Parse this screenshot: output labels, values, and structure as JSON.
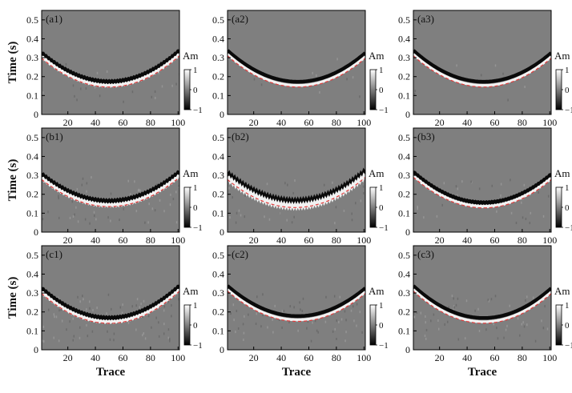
{
  "chart_data": {
    "type": "heatmap",
    "description_free": true,
    "shared": {
      "xlabel": "Trace",
      "ylabel": "Time (s)",
      "xlim": [
        1,
        101
      ],
      "ylim": [
        0,
        0.55
      ],
      "xticks": [
        20,
        40,
        60,
        80,
        100
      ],
      "yticks": [
        0,
        0.1,
        0.2,
        0.3,
        0.4,
        0.5
      ],
      "colorbar": {
        "label": "Am",
        "ticks": [
          1,
          0,
          -1
        ],
        "range": [
          -1,
          1
        ]
      },
      "background_color": "#7f7f7f",
      "event_color": "#0a0a0a",
      "reference_color": "#e23b3b"
    },
    "panels": [
      {
        "label": "(a1)",
        "apex_trace": 50,
        "apex_time": 0.165,
        "edge_time": 0.33,
        "noise": 0.1,
        "jitter": 0.003
      },
      {
        "label": "(a2)",
        "apex_trace": 52,
        "apex_time": 0.165,
        "edge_time": 0.33,
        "noise": 0.05,
        "jitter": 0.0
      },
      {
        "label": "(a3)",
        "apex_trace": 52,
        "apex_time": 0.165,
        "edge_time": 0.33,
        "noise": 0.04,
        "jitter": 0.0
      },
      {
        "label": "(b1)",
        "apex_trace": 50,
        "apex_time": 0.155,
        "edge_time": 0.31,
        "noise": 0.25,
        "jitter": 0.004
      },
      {
        "label": "(b2)",
        "apex_trace": 50,
        "apex_time": 0.15,
        "edge_time": 0.31,
        "noise": 0.2,
        "jitter": 0.008
      },
      {
        "label": "(b3)",
        "apex_trace": 52,
        "apex_time": 0.148,
        "edge_time": 0.31,
        "noise": 0.15,
        "jitter": 0.002
      },
      {
        "label": "(c1)",
        "apex_trace": 50,
        "apex_time": 0.16,
        "edge_time": 0.33,
        "noise": 0.35,
        "jitter": 0.003
      },
      {
        "label": "(c2)",
        "apex_trace": 52,
        "apex_time": 0.17,
        "edge_time": 0.33,
        "noise": 0.3,
        "jitter": 0.0
      },
      {
        "label": "(c3)",
        "apex_trace": 52,
        "apex_time": 0.16,
        "edge_time": 0.33,
        "noise": 0.25,
        "jitter": 0.0
      }
    ]
  }
}
